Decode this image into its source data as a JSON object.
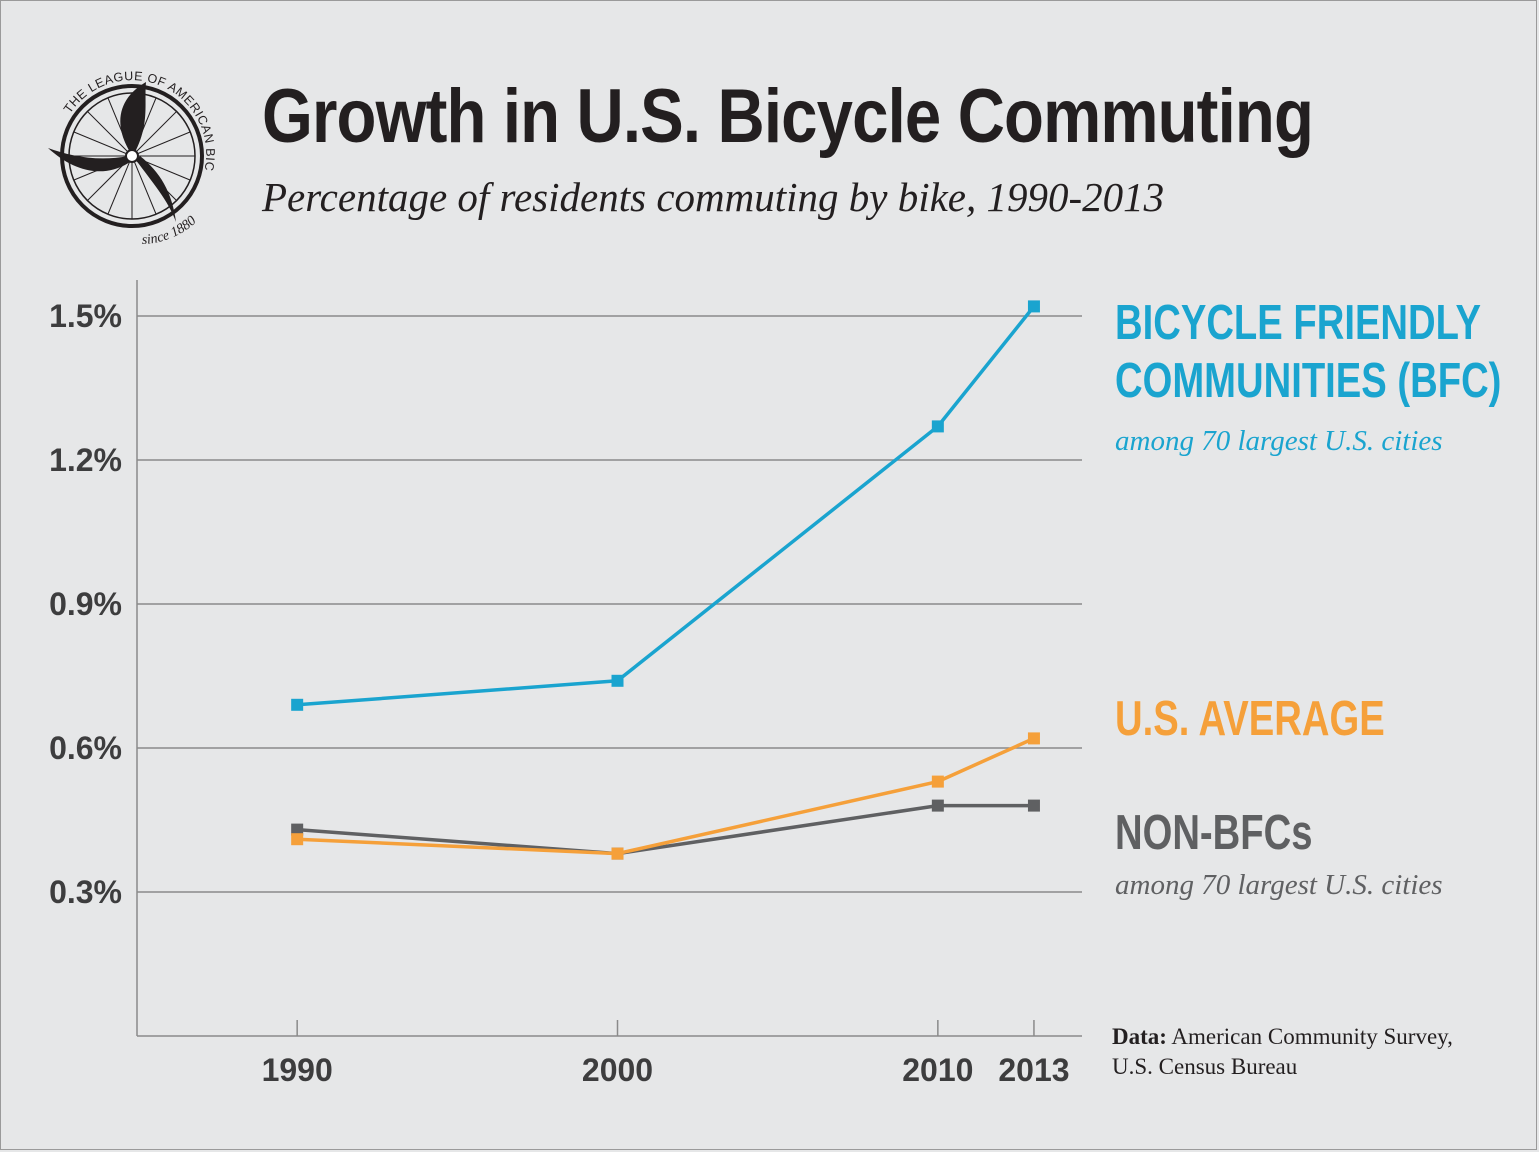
{
  "logo": {
    "arc_text": "THE LEAGUE OF AMERICAN BICYCLISTS",
    "since_text": "since 1880"
  },
  "title": "Growth in U.S. Bicycle Commuting",
  "subtitle": "Percentage of residents commuting by bike, 1990-2013",
  "colors": {
    "background": "#e6e7e8",
    "bfc": "#1aa4cf",
    "us_average": "#f5a03a",
    "non_bfc": "#5f6062",
    "grid": "#8a8a8a",
    "text": "#231f20"
  },
  "labels": {
    "bfc_line1": "BICYCLE FRIENDLY",
    "bfc_line2": "COMMUNITIES (BFC)",
    "bfc_note": "among 70 largest U.S. cities",
    "us_average": "U.S. AVERAGE",
    "non_bfc": "NON-BFCs",
    "non_bfc_note": "among 70 largest U.S. cities"
  },
  "source": {
    "prefix": "Data:",
    "line1": "American Community Survey,",
    "line2": "U.S. Census Bureau"
  },
  "chart_data": {
    "type": "line",
    "title": "Growth in U.S. Bicycle Commuting",
    "subtitle": "Percentage of residents commuting by bike, 1990-2013",
    "xlabel": "",
    "ylabel": "",
    "x": [
      1990,
      2000,
      2010,
      2013
    ],
    "x_tick_labels": [
      "1990",
      "2000",
      "2010",
      "2013"
    ],
    "xlim": [
      1985,
      2014.5
    ],
    "ylim": [
      0,
      1.575
    ],
    "y_ticks": [
      0.3,
      0.6,
      0.9,
      1.2,
      1.5
    ],
    "y_tick_labels": [
      "0.3%",
      "0.6%",
      "0.9%",
      "1.2%",
      "1.5%"
    ],
    "grid": true,
    "legend": "direct labels at right",
    "series": [
      {
        "key": "bfc",
        "name": "BICYCLE FRIENDLY COMMUNITIES (BFC)",
        "color": "#1aa4cf",
        "values": [
          0.69,
          0.74,
          1.27,
          1.52
        ]
      },
      {
        "key": "us_average",
        "name": "U.S. AVERAGE",
        "color": "#f5a03a",
        "values": [
          0.41,
          0.38,
          0.53,
          0.62
        ]
      },
      {
        "key": "non_bfc",
        "name": "NON-BFCs",
        "color": "#5f6062",
        "values": [
          0.43,
          0.38,
          0.48,
          0.48
        ]
      }
    ]
  }
}
